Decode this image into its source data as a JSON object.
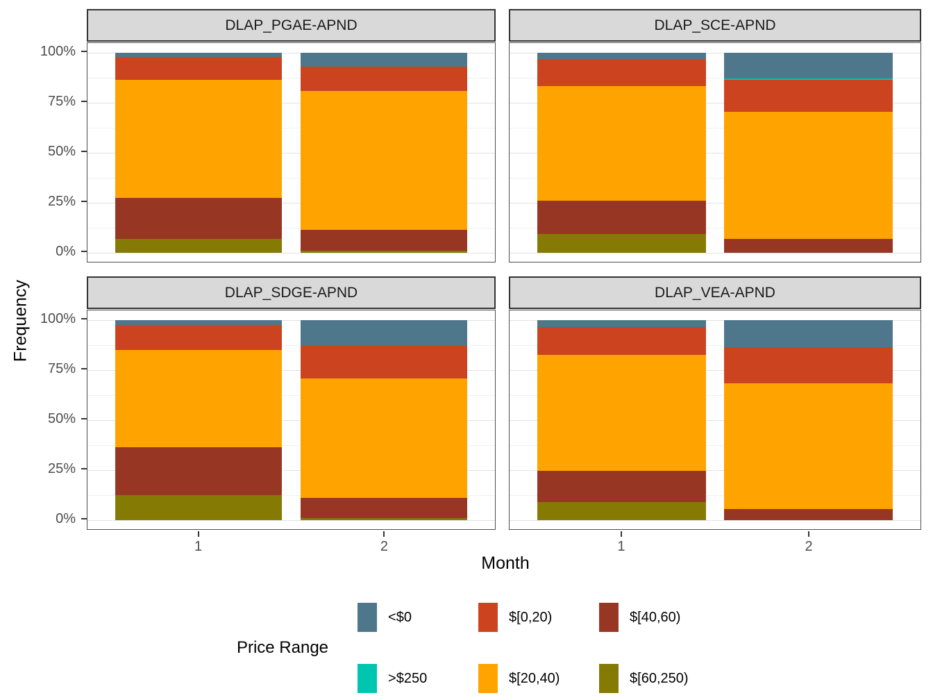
{
  "chart_data": {
    "type": "bar",
    "variant": "stacked-percent-frequency",
    "facet_grid": "2x2",
    "xlabel": "Month",
    "ylabel": "Frequency",
    "legend_title": "Price Range",
    "x_categories": [
      "1",
      "2"
    ],
    "y_tick_values": [
      0,
      25,
      50,
      75,
      100
    ],
    "y_tick_labels": [
      "0%",
      "25%",
      "50%",
      "75%",
      "100%"
    ],
    "ylim": [
      0,
      100
    ],
    "gridlines": "major and minor horizontal",
    "legend_position": "bottom",
    "series_order_top_to_bottom": [
      "<$0",
      ">$250",
      "$[0,20)",
      "$[20,40)",
      "$[40,60)",
      "$[60,250)"
    ],
    "series_colors": {
      "<$0": "#4E778C",
      ">$250": "#00C5B0",
      "$[0,20)": "#CC441F",
      "$[20,40)": "#FFA300",
      "$[40,60)": "#973723",
      "$[60,250)": "#857B04"
    },
    "legend_columns": [
      [
        "<$0",
        ">$250"
      ],
      [
        "$[0,20)",
        "$[20,40)"
      ],
      [
        "$[40,60)",
        "$[60,250)"
      ]
    ],
    "facets": [
      {
        "title": "DLAP_PGAE-APND",
        "bars": [
          {
            "month": "1",
            "values": {
              "<$0": 2,
              ">$250": 0,
              "$[0,20)": 11.5,
              "$[20,40)": 59,
              "$[40,60)": 20.5,
              "$[60,250)": 7
            }
          },
          {
            "month": "2",
            "values": {
              "<$0": 7,
              ">$250": 0,
              "$[0,20)": 12,
              "$[20,40)": 69.5,
              "$[40,60)": 10.5,
              "$[60,250)": 1
            }
          }
        ]
      },
      {
        "title": "DLAP_SCE-APND",
        "bars": [
          {
            "month": "1",
            "values": {
              "<$0": 3,
              ">$250": 0,
              "$[0,20)": 13.5,
              "$[20,40)": 57.5,
              "$[40,60)": 16.5,
              "$[60,250)": 9.5
            }
          },
          {
            "month": "2",
            "values": {
              "<$0": 13,
              ">$250": 0.5,
              "$[0,20)": 16,
              "$[20,40)": 63.5,
              "$[40,60)": 7,
              "$[60,250)": 0
            }
          }
        ]
      },
      {
        "title": "DLAP_SDGE-APND",
        "bars": [
          {
            "month": "1",
            "values": {
              "<$0": 2.5,
              ">$250": 0,
              "$[0,20)": 12.5,
              "$[20,40)": 48.5,
              "$[40,60)": 24,
              "$[60,250)": 12.5
            }
          },
          {
            "month": "2",
            "values": {
              "<$0": 13,
              ">$250": 0,
              "$[0,20)": 16,
              "$[20,40)": 60,
              "$[40,60)": 10,
              "$[60,250)": 1
            }
          }
        ]
      },
      {
        "title": "DLAP_VEA-APND",
        "bars": [
          {
            "month": "1",
            "values": {
              "<$0": 3.5,
              ">$250": 0,
              "$[0,20)": 14,
              "$[20,40)": 58,
              "$[40,60)": 15.5,
              "$[60,250)": 9
            }
          },
          {
            "month": "2",
            "values": {
              "<$0": 13.5,
              ">$250": 0,
              "$[0,20)": 18,
              "$[20,40)": 63,
              "$[40,60)": 5.5,
              "$[60,250)": 0
            }
          }
        ]
      }
    ]
  }
}
